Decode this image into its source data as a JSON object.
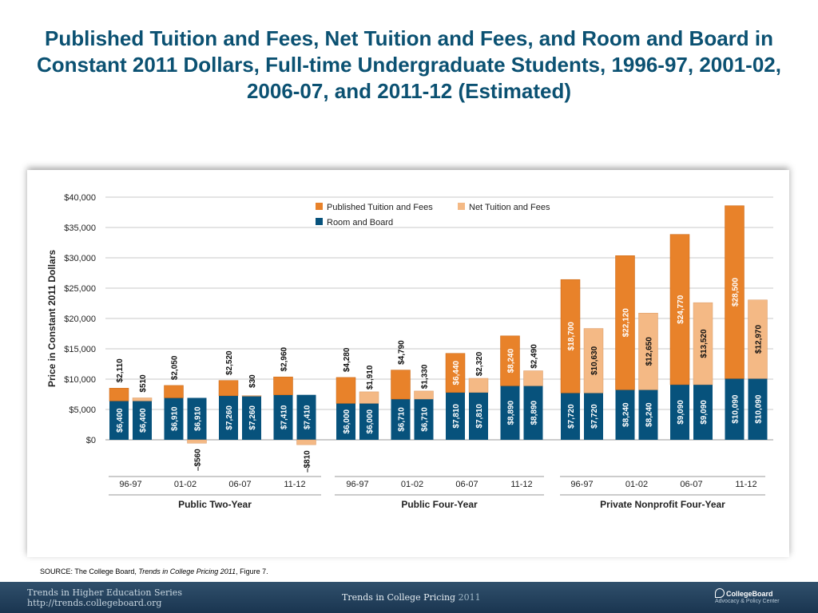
{
  "slide": {
    "title": "Published Tuition and Fees, Net Tuition and Fees, and Room and Board in Constant 2011 Dollars, Full-time Undergraduate Students, 1996-97, 2001-02, 2006-07, and 2011-12 (Estimated)"
  },
  "source": {
    "prefix": "SOURCE: The College Board, ",
    "publication": "Trends in College Pricing 2011",
    "suffix": ", Figure 7."
  },
  "footer": {
    "series_line1": "Trends in Higher Education Series",
    "series_line2": "http://trends.collegeboard.org",
    "report": "Trends in College Pricing ",
    "report_year": "2011",
    "logo_name": "CollegeBoard",
    "logo_sub": "Advocacy & Policy Center"
  },
  "chart_data": {
    "type": "bar",
    "stacked": true,
    "ylabel": "Price in Constant 2011 Dollars",
    "ylim": [
      0,
      40000
    ],
    "y_ticks": [
      0,
      5000,
      10000,
      15000,
      20000,
      25000,
      30000,
      35000,
      40000
    ],
    "y_tick_labels": [
      "$0",
      "$5,000",
      "$10,000",
      "$15,000",
      "$20,000",
      "$25,000",
      "$30,000",
      "$35,000",
      "$40,000"
    ],
    "grid": true,
    "legend_position": "top",
    "legend": [
      {
        "name": "Published Tuition and Fees",
        "color": "#e8822a"
      },
      {
        "name": "Net Tuition and Fees",
        "color": "#f4b985"
      },
      {
        "name": "Room and Board",
        "color": "#07527c"
      }
    ],
    "groups": [
      {
        "name": "Public Two-Year",
        "years": [
          {
            "year": "96-97",
            "room_board": 6400,
            "room_board_label": "$6,400",
            "published": 2110,
            "published_label": "$2,110",
            "net": 510,
            "net_label": "$510"
          },
          {
            "year": "01-02",
            "room_board": 6910,
            "room_board_label": "$6,910",
            "published": 2050,
            "published_label": "$2,050",
            "net": -560,
            "net_label": "–$560"
          },
          {
            "year": "06-07",
            "room_board": 7260,
            "room_board_label": "$7,260",
            "published": 2520,
            "published_label": "$2,520",
            "net": 30,
            "net_label": "$30"
          },
          {
            "year": "11-12",
            "room_board": 7410,
            "room_board_label": "$7,410",
            "published": 2960,
            "published_label": "$2,960",
            "net": -810,
            "net_label": "–$810"
          }
        ]
      },
      {
        "name": "Public Four-Year",
        "years": [
          {
            "year": "96-97",
            "room_board": 6000,
            "room_board_label": "$6,000",
            "published": 4280,
            "published_label": "$4,280",
            "net": 1910,
            "net_label": "$1,910"
          },
          {
            "year": "01-02",
            "room_board": 6710,
            "room_board_label": "$6,710",
            "published": 4790,
            "published_label": "$4,790",
            "net": 1330,
            "net_label": "$1,330"
          },
          {
            "year": "06-07",
            "room_board": 7810,
            "room_board_label": "$7,810",
            "published": 6440,
            "published_label": "$6,440",
            "net": 2320,
            "net_label": "$2,320"
          },
          {
            "year": "11-12",
            "room_board": 8890,
            "room_board_label": "$8,890",
            "published": 8240,
            "published_label": "$8,240",
            "net": 2490,
            "net_label": "$2,490"
          }
        ]
      },
      {
        "name": "Private Nonprofit Four-Year",
        "years": [
          {
            "year": "96-97",
            "room_board": 7720,
            "room_board_label": "$7,720",
            "published": 18700,
            "published_label": "$18,700",
            "net": 10630,
            "net_label": "$10,630"
          },
          {
            "year": "01-02",
            "room_board": 8240,
            "room_board_label": "$8,240",
            "published": 22120,
            "published_label": "$22,120",
            "net": 12650,
            "net_label": "$12,650"
          },
          {
            "year": "06-07",
            "room_board": 9090,
            "room_board_label": "$9,090",
            "published": 24770,
            "published_label": "$24,770",
            "net": 13520,
            "net_label": "$13,520"
          },
          {
            "year": "11-12",
            "room_board": 10090,
            "room_board_label": "$10,090",
            "published": 28500,
            "published_label": "$28,500",
            "net": 12970,
            "net_label": "$12,970"
          }
        ]
      }
    ]
  }
}
